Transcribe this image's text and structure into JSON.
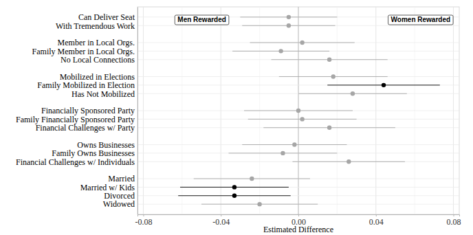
{
  "chart_data": {
    "type": "dot",
    "orientation": "horizontal",
    "x_label": "Estimated Difference",
    "annotations": [
      "Men Rewarded",
      "Women Rewarded"
    ],
    "categories": [
      "Can Deliver Seat",
      "With Tremendous Work",
      null,
      "Member in Local Orgs.",
      "Family Member in Local Orgs.",
      "No Local Connections",
      null,
      "Mobilized in Elections",
      "Family Mobilized in Election",
      "Has Not Mobilized",
      null,
      "Financially Sponsored Party",
      "Family Financially Sponsored Party",
      "Financial Challenges w/ Party",
      null,
      "Owns Businesses",
      "Family Owns Businesses",
      "Financial Challenges w/ Individuals",
      null,
      "Married",
      "Married w/ Kids",
      "Divorced",
      "Widowed"
    ],
    "values": [
      -0.005,
      -0.005,
      null,
      0.002,
      -0.009,
      0.016,
      null,
      0.018,
      0.044,
      0.028,
      null,
      0.0,
      0.002,
      0.016,
      null,
      -0.002,
      -0.008,
      0.026,
      null,
      -0.024,
      -0.033,
      -0.033,
      -0.02
    ],
    "errors": [
      0.025,
      0.024,
      null,
      0.027,
      0.025,
      0.03,
      null,
      0.028,
      0.029,
      0.028,
      null,
      0.028,
      0.028,
      0.034,
      null,
      0.027,
      0.028,
      0.029,
      null,
      0.03,
      0.028,
      0.029,
      0.03
    ],
    "colors": [
      "#a6a6a6",
      "#a6a6a6",
      null,
      "#a6a6a6",
      "#a6a6a6",
      "#a6a6a6",
      null,
      "#a6a6a6",
      "#000000",
      "#a6a6a6",
      null,
      "#a6a6a6",
      "#a6a6a6",
      "#a6a6a6",
      null,
      "#a6a6a6",
      "#a6a6a6",
      "#a6a6a6",
      null,
      "#a6a6a6",
      "#000000",
      "#000000",
      "#a6a6a6"
    ],
    "xlim": [
      -0.083,
      0.083
    ],
    "xticks": [
      -0.08,
      -0.04,
      {
        "value": 0,
        "label": "0.00"
      },
      0.04,
      0.08
    ],
    "grid": true
  }
}
